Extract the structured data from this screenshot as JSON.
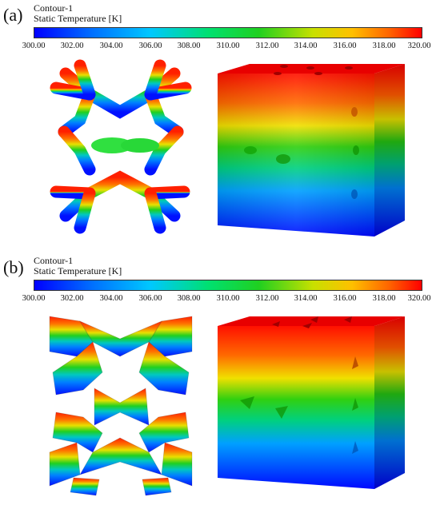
{
  "panels": [
    {
      "label": "(a)",
      "contour_title": "Contour-1",
      "variable": "Static Temperature [K]",
      "ticks": [
        "300.00",
        "302.00",
        "304.00",
        "306.00",
        "308.00",
        "310.00",
        "312.00",
        "314.00",
        "316.00",
        "318.00",
        "320.00"
      ],
      "geometry": "rod-lattice"
    },
    {
      "label": "(b)",
      "contour_title": "Contour-1",
      "variable": "Static Temperature [K]",
      "ticks": [
        "300.00",
        "302.00",
        "304.00",
        "306.00",
        "308.00",
        "310.00",
        "312.00",
        "314.00",
        "316.00",
        "318.00",
        "320.00"
      ],
      "geometry": "plate-lattice"
    }
  ],
  "colormap": [
    "#0000ff",
    "#0070ff",
    "#00c8ff",
    "#00e070",
    "#20d020",
    "#c8e000",
    "#ffc000",
    "#ff6000",
    "#ff0000"
  ]
}
